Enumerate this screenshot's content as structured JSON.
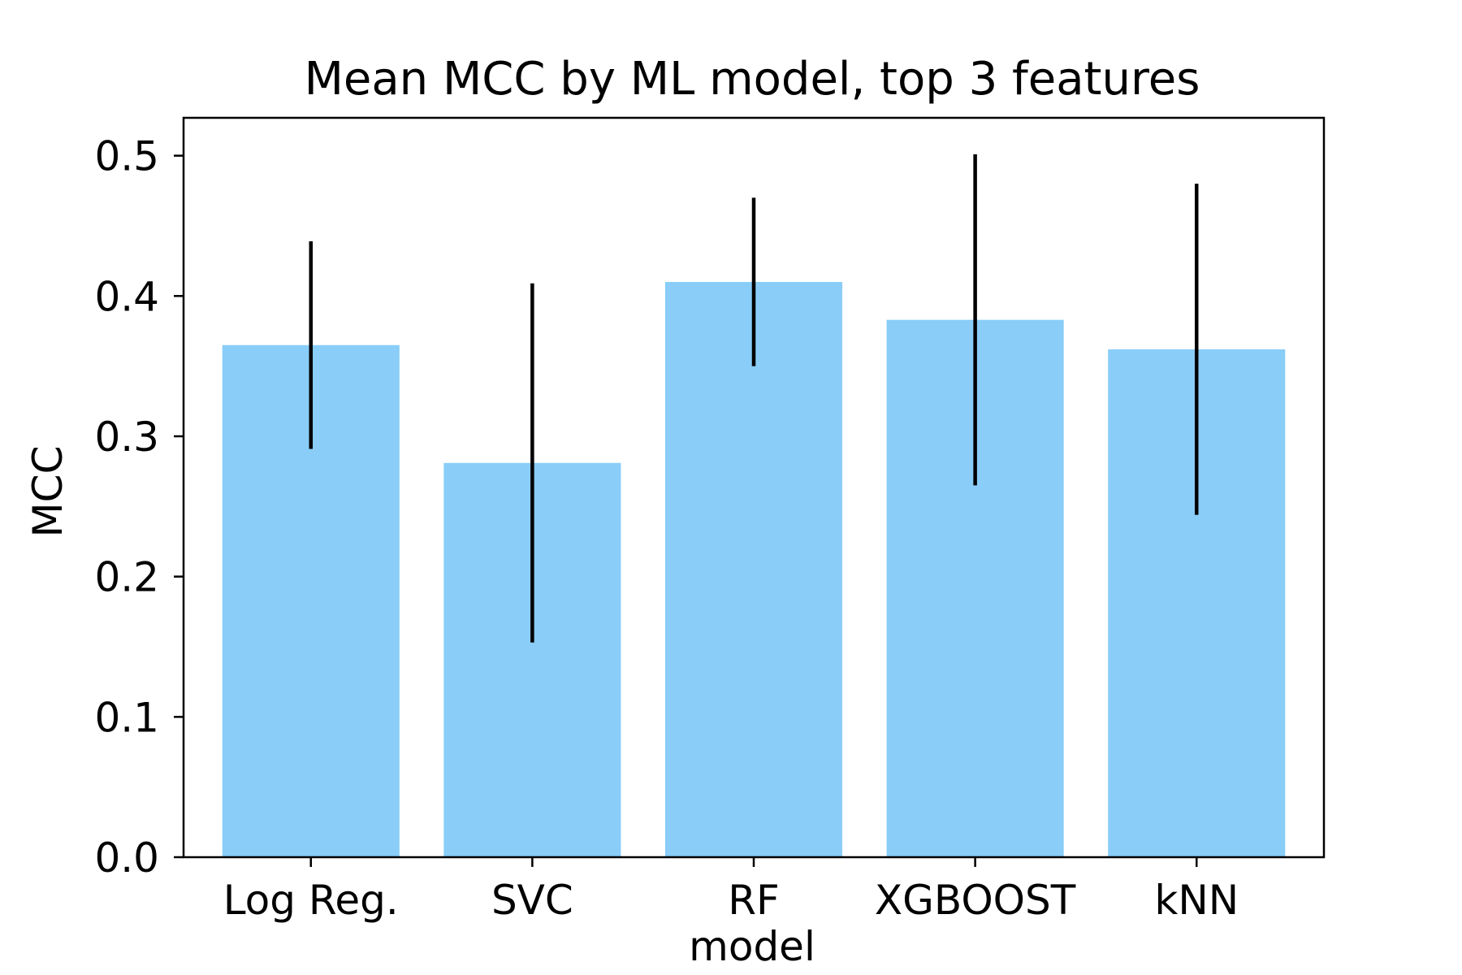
{
  "chart_data": {
    "type": "bar",
    "title": "Mean MCC by ML model, top 3 features",
    "xlabel": "model",
    "ylabel": "MCC",
    "categories": [
      "Log Reg.",
      "SVC",
      "RF",
      "XGBOOST",
      "kNN"
    ],
    "values": [
      0.365,
      0.281,
      0.41,
      0.383,
      0.362
    ],
    "error": [
      0.074,
      0.128,
      0.06,
      0.118,
      0.118
    ],
    "ylim": [
      0,
      0.527
    ],
    "yticks": [
      0.0,
      0.1,
      0.2,
      0.3,
      0.4,
      0.5
    ],
    "ytick_labels": [
      "0.0",
      "0.1",
      "0.2",
      "0.3",
      "0.4",
      "0.5"
    ],
    "grid": false,
    "bar_color": "#89CDF8",
    "error_color": "#000000"
  }
}
